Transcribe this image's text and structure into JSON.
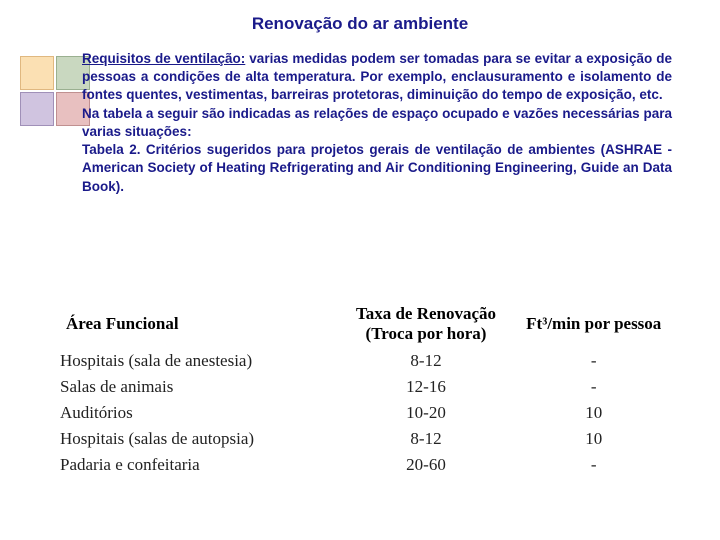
{
  "title": "Renovação do ar ambiente",
  "para": {
    "req_label": "Requisitos de ventilação:",
    "req_rest": " varias medidas podem ser tomadas para se evitar a exposição de pessoas a condições de alta temperatura. Por exemplo, enclausuramento e isolamento de fontes quentes, vestimentas, barreiras protetoras, diminuição do tempo de exposição, etc.",
    "line2": "Na tabela a seguir são indicadas as relações de espaço ocupado e vazões necessárias para varias situações:",
    "line3": "Tabela 2. Critérios sugeridos para projetos gerais de ventilação de ambientes (ASHRAE - American Society of Heating Refrigerating and Air Conditioning Engineering, Guide an Data Book)."
  },
  "table": {
    "headers": {
      "area": "Área Funcional",
      "taxa": "Taxa de Renovação (Troca por hora)",
      "ft3": "Ft³/min por pessoa"
    },
    "rows": [
      {
        "area": "Hospitais (sala de anestesia)",
        "taxa": "8-12",
        "ft3": "-"
      },
      {
        "area": "Salas de animais",
        "taxa": "12-16",
        "ft3": "-"
      },
      {
        "area": "Auditórios",
        "taxa": "10-20",
        "ft3": "10"
      },
      {
        "area": "Hospitais (salas de autopsia)",
        "taxa": "8-12",
        "ft3": "10"
      },
      {
        "area": "Padaria e confeitaria",
        "taxa": "20-60",
        "ft3": "-"
      }
    ]
  }
}
